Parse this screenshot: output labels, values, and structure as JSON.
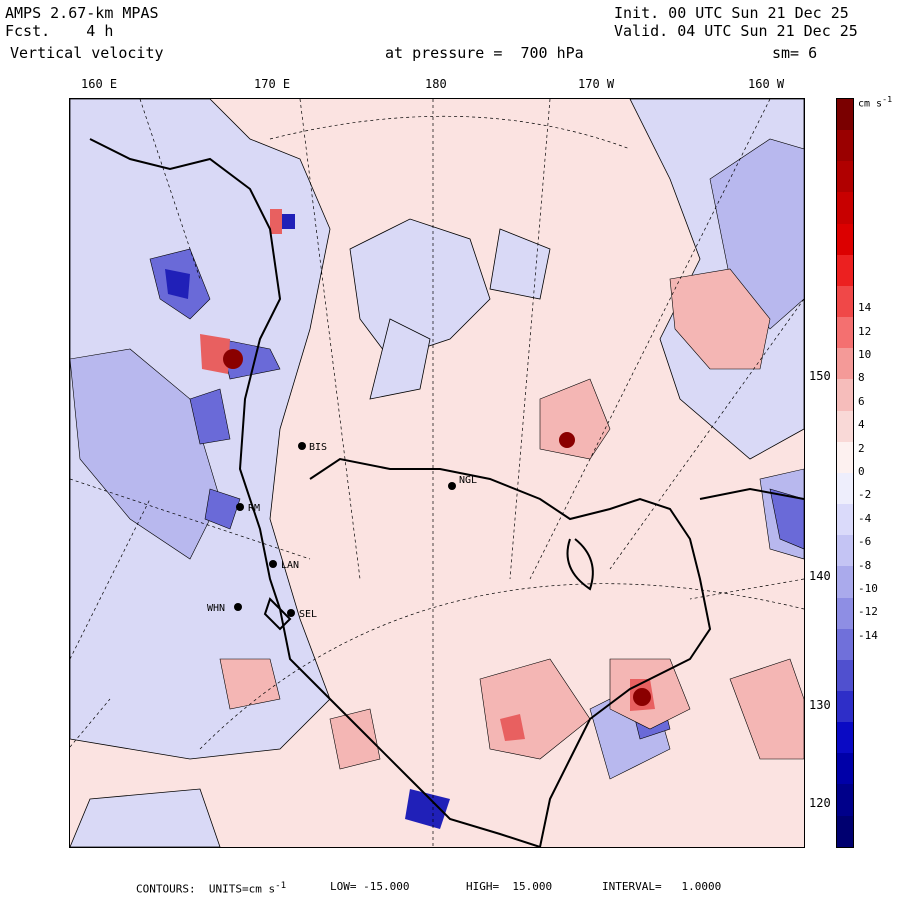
{
  "header": {
    "model": "AMPS 2.67-km MPAS",
    "fcst_label": "Fcst.",
    "fcst_value": "4 h",
    "field": "Vertical velocity",
    "init": "Init. 00 UTC Sun 21 Dec 25",
    "valid": "Valid. 04 UTC Sun 21 Dec 25",
    "pressure": "at pressure =  700 hPa",
    "smoothing": "sm= 6"
  },
  "longitude_labels": [
    "160 E",
    "170 E",
    "180",
    "170 W",
    "160 W"
  ],
  "latitude_labels": [
    "150 W",
    "140 W",
    "130 W",
    "120 W"
  ],
  "stations": [
    "BIS",
    "NGL",
    "RM",
    "LAN",
    "WHN",
    "SEL"
  ],
  "colorbar": {
    "unit": "cm s",
    "unit_exp": "-1",
    "labels": [
      "14",
      "12",
      "10",
      "8",
      "6",
      "4",
      "2",
      "0",
      "-2",
      "-4",
      "-6",
      "-8",
      "-10",
      "-12",
      "-14"
    ],
    "colors": [
      "#7a0000",
      "#9a0000",
      "#b00000",
      "#c80000",
      "#dc0000",
      "#ec2020",
      "#f04848",
      "#f47070",
      "#f49a98",
      "#f6bdbb",
      "#f9d9d7",
      "#fdf1f0",
      "#eeeefc",
      "#dadafa",
      "#c4c4f4",
      "#aaaaec",
      "#8e8ee4",
      "#7070da",
      "#5050cf",
      "#2e2ec8",
      "#0a0ac4",
      "#0000a8",
      "#00008a",
      "#000070"
    ]
  },
  "footer": {
    "contours": "CONTOURS:  UNITS=cm s",
    "unit_exp": "-1",
    "low": "LOW= -15.000",
    "high": "HIGH=  15.000",
    "interval": "INTERVAL=   1.0000"
  },
  "colors": {
    "background_positive": "#fbe3e1",
    "background_negative": "#dcdcf6"
  }
}
